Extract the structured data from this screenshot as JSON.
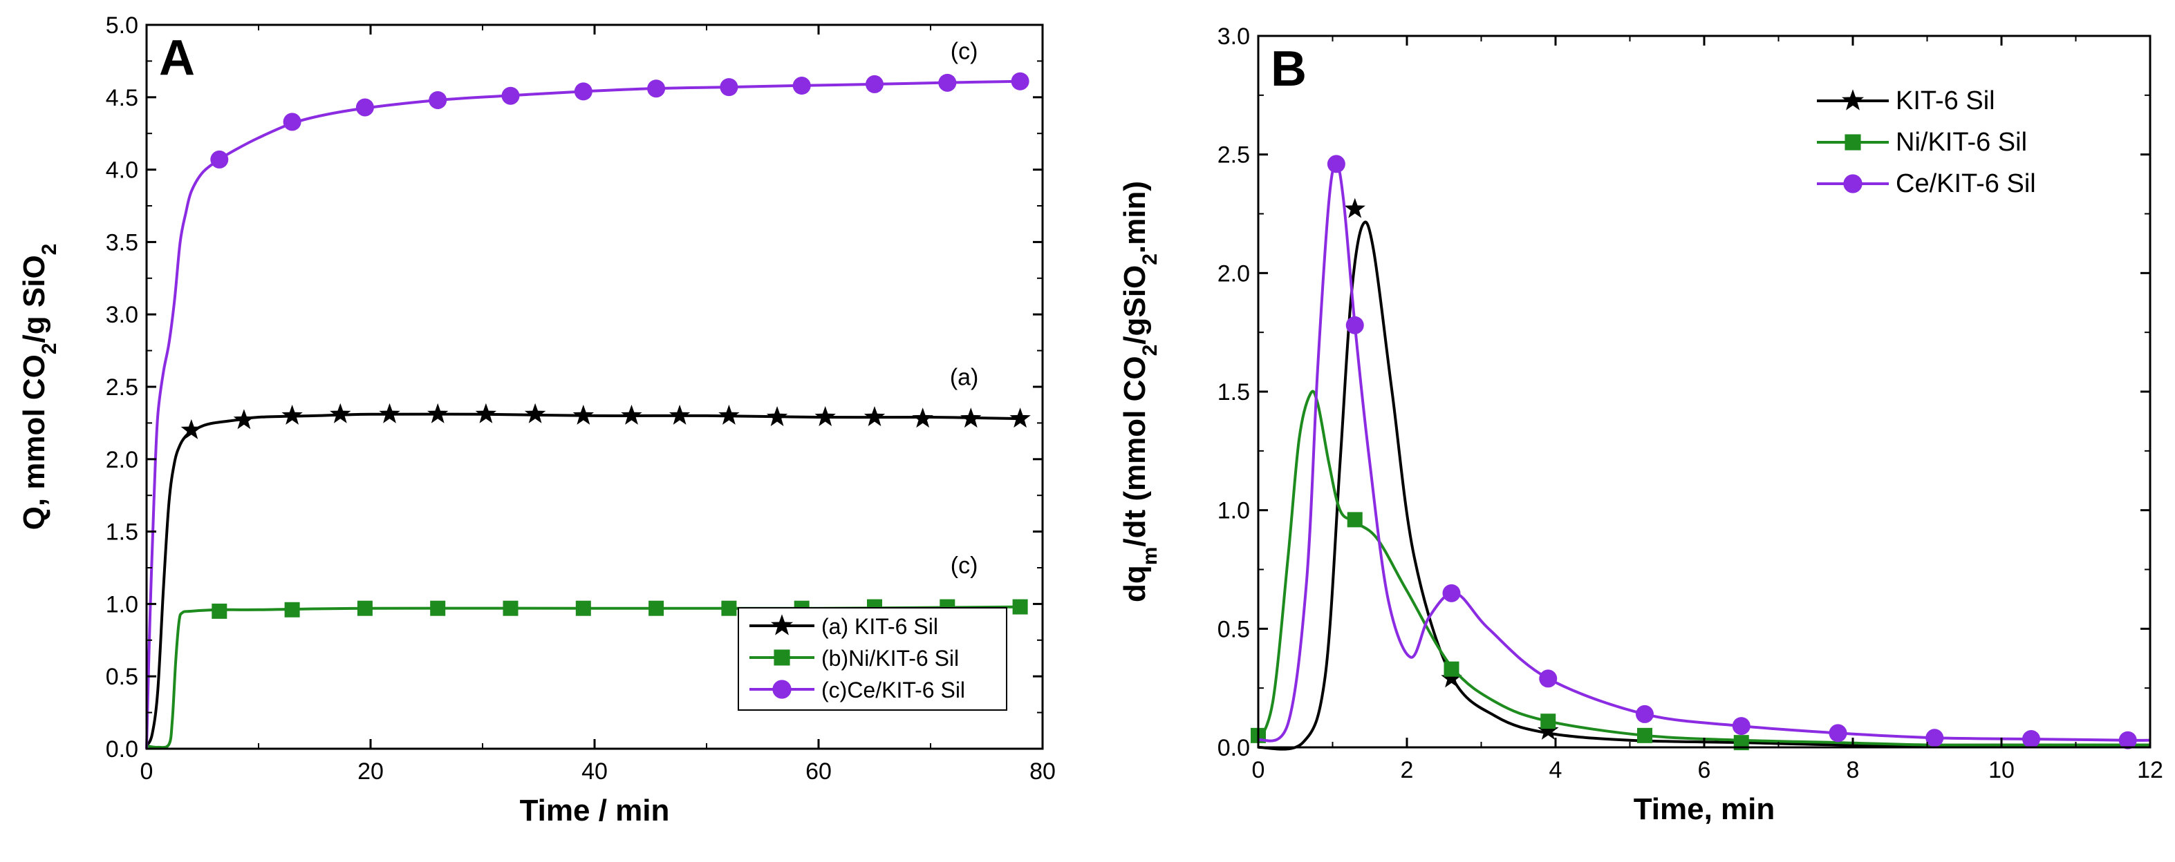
{
  "chart_data": [
    {
      "id": "A",
      "type": "line",
      "panel_label": "A",
      "xlabel": "Time / min",
      "ylabel": "Q, mmol CO2/g SiO2",
      "ylabel_parts": {
        "a": "Q, mmol CO",
        "sub1": "2",
        "b": "/g SiO",
        "sub2": "2"
      },
      "xlim": [
        0,
        80
      ],
      "ylim": [
        0,
        5
      ],
      "xticks": [
        0,
        20,
        40,
        60,
        80
      ],
      "xtick_labels": [
        "0",
        "20",
        "40",
        "60",
        "80"
      ],
      "yticks": [
        0,
        0.5,
        1,
        1.5,
        2,
        2.5,
        3,
        3.5,
        4,
        4.5,
        5
      ],
      "ytick_labels": [
        "0.0",
        "0.5",
        "1.0",
        "1.5",
        "2.0",
        "2.5",
        "3.0",
        "3.5",
        "4.0",
        "4.5",
        "5.0"
      ],
      "legend_position": "bottom-right",
      "annotations": [
        {
          "text": "(c)",
          "x": 73,
          "y": 4.82
        },
        {
          "text": "(a)",
          "x": 73,
          "y": 2.57
        },
        {
          "text": "(c)",
          "x": 73,
          "y": 1.27
        }
      ],
      "series": [
        {
          "name": "(a) KIT-6 Sil",
          "color": "#000000",
          "marker": "star",
          "x": [
            0,
            0.5,
            1,
            1.5,
            2,
            2.5,
            3,
            3.5,
            4,
            5,
            6,
            8,
            10,
            15,
            20,
            30,
            40,
            50,
            60,
            70,
            78
          ],
          "y": [
            0.02,
            0.1,
            0.4,
            1.1,
            1.7,
            1.98,
            2.1,
            2.16,
            2.19,
            2.23,
            2.25,
            2.27,
            2.29,
            2.3,
            2.31,
            2.31,
            2.3,
            2.3,
            2.29,
            2.29,
            2.28
          ],
          "marker_x": [
            4,
            8.7,
            13,
            17.3,
            21.7,
            26,
            30.3,
            34.7,
            39,
            43.3,
            47.6,
            52,
            56.3,
            60.6,
            65,
            69.3,
            73.6,
            78
          ],
          "marker_y": [
            2.2,
            2.27,
            2.3,
            2.31,
            2.31,
            2.31,
            2.31,
            2.31,
            2.3,
            2.3,
            2.3,
            2.3,
            2.29,
            2.29,
            2.29,
            2.28,
            2.28,
            2.28
          ]
        },
        {
          "name": "(b)Ni/KIT-6 Sil",
          "color": "#1e8b1e",
          "marker": "square",
          "x": [
            0,
            1,
            2,
            2.3,
            2.6,
            2.9,
            3.2,
            4,
            6.5,
            10,
            20,
            40,
            60,
            78
          ],
          "y": [
            0.02,
            0.01,
            0.03,
            0.2,
            0.6,
            0.88,
            0.94,
            0.95,
            0.96,
            0.96,
            0.97,
            0.97,
            0.97,
            0.98
          ],
          "marker_x": [
            6.5,
            13,
            19.5,
            26,
            32.5,
            39,
            45.5,
            52,
            58.5,
            65,
            71.5,
            78
          ],
          "marker_y": [
            0.95,
            0.96,
            0.97,
            0.97,
            0.97,
            0.97,
            0.97,
            0.97,
            0.97,
            0.98,
            0.98,
            0.98
          ]
        },
        {
          "name": "(c)Ce/KIT-6 Sil",
          "color": "#8b2be2",
          "marker": "circle",
          "x": [
            0,
            0.3,
            0.7,
            1,
            1.5,
            2,
            2.5,
            3,
            3.5,
            4,
            5,
            6.5,
            8,
            10,
            13,
            16,
            20,
            26,
            32,
            39,
            45,
            52,
            58,
            65,
            71,
            78
          ],
          "y": [
            0,
            0.9,
            1.8,
            2.3,
            2.6,
            2.8,
            3.1,
            3.5,
            3.7,
            3.85,
            3.98,
            4.07,
            4.14,
            4.22,
            4.32,
            4.38,
            4.43,
            4.48,
            4.51,
            4.54,
            4.56,
            4.57,
            4.58,
            4.59,
            4.6,
            4.61
          ],
          "marker_x": [
            6.5,
            13,
            19.5,
            26,
            32.5,
            39,
            45.5,
            52,
            58.5,
            65,
            71.5,
            78
          ],
          "marker_y": [
            4.07,
            4.33,
            4.43,
            4.48,
            4.51,
            4.54,
            4.56,
            4.57,
            4.58,
            4.59,
            4.6,
            4.61
          ]
        }
      ]
    },
    {
      "id": "B",
      "type": "line",
      "panel_label": "B",
      "xlabel": "Time, min",
      "ylabel": "dqm/dt (mmol CO2/gSiO2.min)",
      "ylabel_parts": {
        "a": "dq",
        "sub1": "m",
        "b": "/dt (mmol CO",
        "sub2": "2",
        "c": "/gSiO",
        "sub3": "2",
        "d": ".min)"
      },
      "xlim": [
        0,
        12
      ],
      "ylim": [
        0,
        3
      ],
      "xticks": [
        0,
        2,
        4,
        6,
        8,
        10,
        12
      ],
      "xtick_labels": [
        "0",
        "2",
        "4",
        "6",
        "8",
        "10",
        "12"
      ],
      "yticks": [
        0,
        0.5,
        1,
        1.5,
        2,
        2.5,
        3
      ],
      "ytick_labels": [
        "0.0",
        "0.5",
        "1.0",
        "1.5",
        "2.0",
        "2.5",
        "3.0"
      ],
      "legend_position": "top-right",
      "series": [
        {
          "name": "KIT-6 Sil",
          "color": "#000000",
          "marker": "star",
          "x": [
            0,
            0.6,
            0.9,
            1.1,
            1.25,
            1.4,
            1.55,
            1.8,
            2.1,
            2.6,
            3.2,
            3.9,
            5,
            6.5,
            8,
            10,
            12
          ],
          "y": [
            0,
            0.02,
            0.3,
            1.2,
            1.9,
            2.2,
            2.1,
            1.5,
            0.8,
            0.3,
            0.13,
            0.06,
            0.03,
            0.02,
            0.01,
            0.01,
            0.01
          ],
          "marker_x": [
            1.3,
            2.6,
            3.9
          ],
          "marker_y": [
            2.27,
            0.29,
            0.07
          ]
        },
        {
          "name": "Ni/KIT-6 Sil",
          "color": "#1e8b1e",
          "marker": "square",
          "x": [
            0,
            0.2,
            0.4,
            0.55,
            0.7,
            0.8,
            0.95,
            1.1,
            1.3,
            1.6,
            2,
            2.6,
            3.2,
            3.9,
            5.2,
            6.5,
            7.8,
            9.1,
            10.4,
            12
          ],
          "y": [
            0.02,
            0.2,
            0.8,
            1.3,
            1.49,
            1.45,
            1.2,
            1.0,
            0.95,
            0.88,
            0.66,
            0.34,
            0.19,
            0.11,
            0.05,
            0.03,
            0.02,
            0.01,
            0.01,
            0.01
          ],
          "marker_x": [
            0,
            1.3,
            2.6,
            3.9,
            5.2,
            6.5
          ],
          "marker_y": [
            0.05,
            0.96,
            0.33,
            0.11,
            0.05,
            0.02
          ]
        },
        {
          "name": "Ce/KIT-6 Sil",
          "color": "#8b2be2",
          "marker": "circle",
          "x": [
            0,
            0.4,
            0.65,
            0.8,
            0.95,
            1.05,
            1.15,
            1.3,
            1.5,
            1.75,
            2.05,
            2.3,
            2.65,
            3.1,
            3.9,
            5.2,
            6.5,
            7.8,
            9.1,
            10.4,
            11.7,
            12
          ],
          "y": [
            0.03,
            0.1,
            0.7,
            1.6,
            2.3,
            2.46,
            2.3,
            1.78,
            1.2,
            0.62,
            0.38,
            0.55,
            0.65,
            0.5,
            0.29,
            0.14,
            0.09,
            0.06,
            0.04,
            0.035,
            0.03,
            0.03
          ],
          "marker_x": [
            1.05,
            1.3,
            2.6,
            3.9,
            5.2,
            6.5,
            7.8,
            9.1,
            10.4,
            11.7
          ],
          "marker_y": [
            2.46,
            1.78,
            0.65,
            0.29,
            0.14,
            0.09,
            0.06,
            0.04,
            0.035,
            0.03
          ]
        }
      ]
    }
  ]
}
